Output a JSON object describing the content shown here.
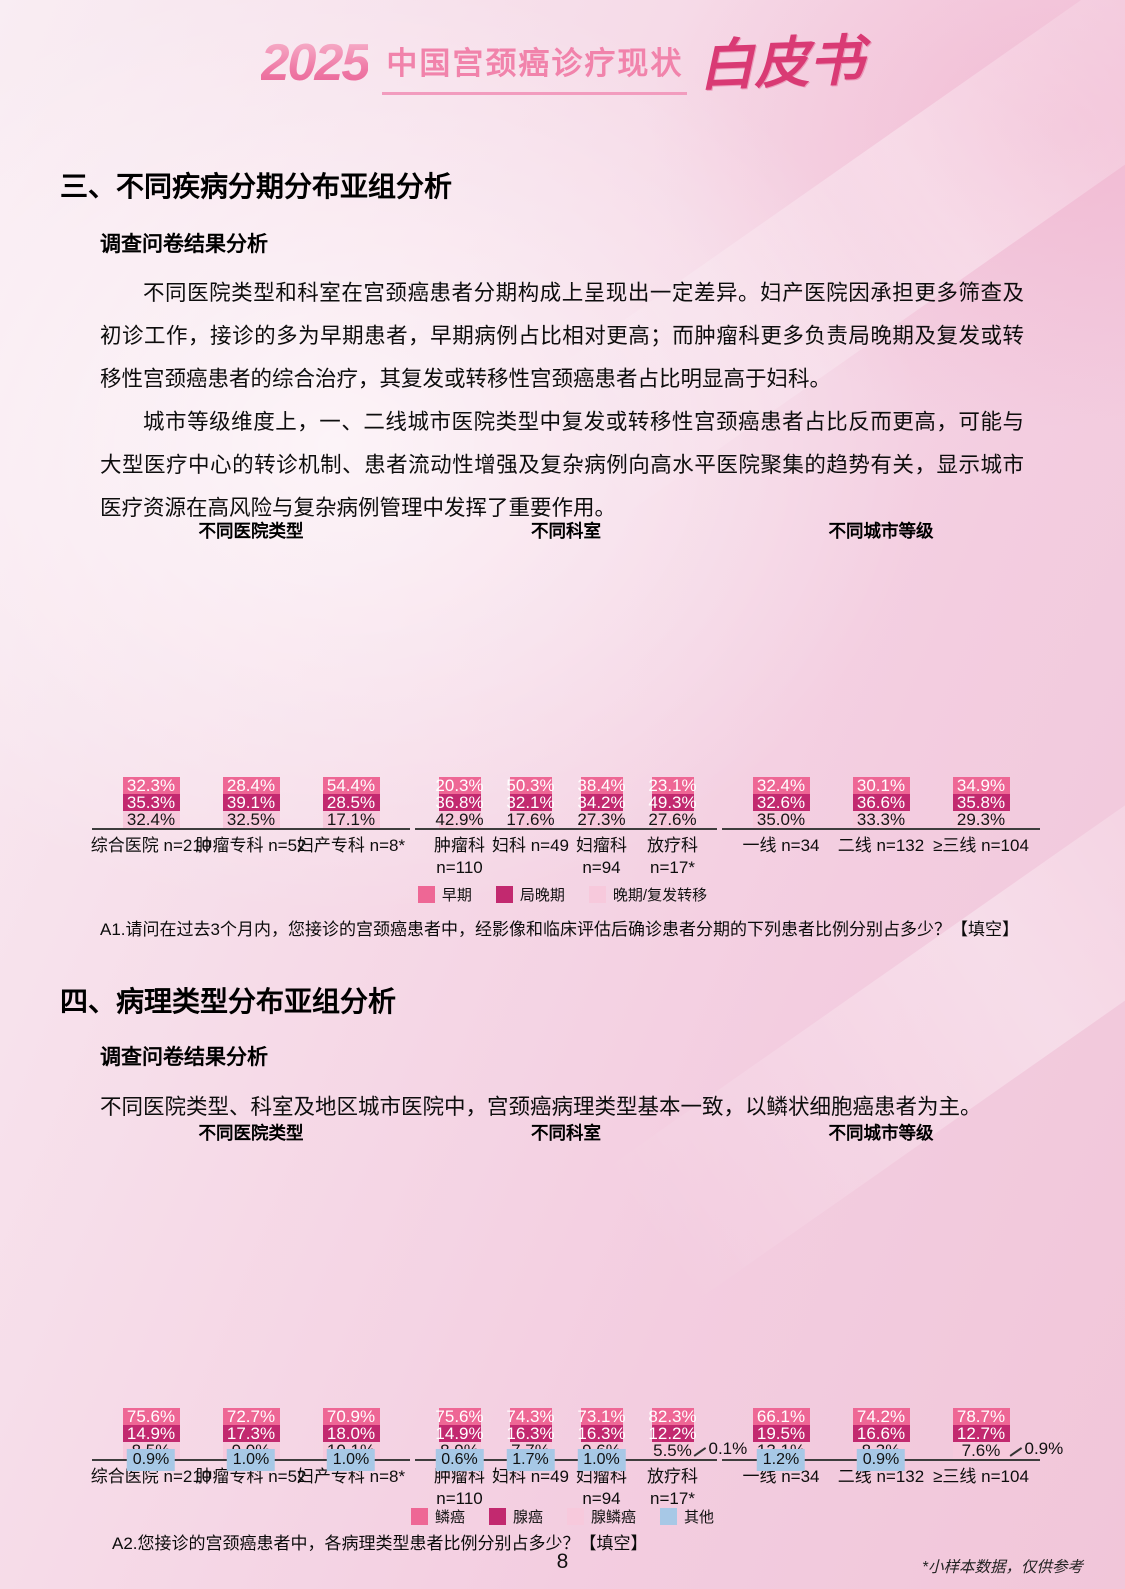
{
  "header": {
    "year": "2025",
    "title": "中国宫颈癌诊疗现状",
    "suffix": "白皮书"
  },
  "section3": {
    "heading": "三、不同疾病分期分布亚组分析",
    "subheading": "调查问卷结果分析",
    "paragraphs": [
      "不同医院类型和科室在宫颈癌患者分期构成上呈现出一定差异。妇产医院因承担更多筛查及初诊工作，接诊的多为早期患者，早期病例占比相对更高；而肿瘤科更多负责局晚期及复发或转移性宫颈癌患者的综合治疗，其复发或转移性宫颈癌患者占比明显高于妇科。",
      "城市等级维度上，一、二线城市医院类型中复发或转移性宫颈癌患者占比反而更高，可能与大型医疗中心的转诊机制、患者流动性增强及复杂病例向高水平医院聚集的趋势有关，显示城市医疗资源在高风险与复杂病例管理中发挥了重要作用。"
    ],
    "question": "A1.请问在过去3个月内，您接诊的宫颈癌患者中，经影像和临床评估后确诊患者分期的下列患者比例分别占多少？【填空】"
  },
  "section4": {
    "heading": "四、病理类型分布亚组分析",
    "subheading": "调查问卷结果分析",
    "paragraphs": [
      "不同医院类型、科室及地区城市医院中，宫颈癌病理类型基本一致，以鳞状细胞癌患者为主。"
    ],
    "question": "A2.您接诊的宫颈癌患者中，各病理类型患者比例分别占多少？【填空】"
  },
  "colors": {
    "pink": "#EE6795",
    "magenta": "#C2296F",
    "light_pink": "#F7C9DC",
    "light_blue": "#A7C8E6",
    "logo_pink": "#F183AB",
    "logo_crimson": "#D93A74",
    "axis": "#3D3D3D"
  },
  "legends": {
    "row1": [
      {
        "label": "早期",
        "color": "#EE6795"
      },
      {
        "label": "局晚期",
        "color": "#C2296F"
      },
      {
        "label": "晚期/复发转移",
        "color": "#F7C9DC"
      }
    ],
    "row2": [
      {
        "label": "鳞癌",
        "color": "#EE6795"
      },
      {
        "label": "腺癌",
        "color": "#C2296F"
      },
      {
        "label": "腺鳞癌",
        "color": "#F7C9DC"
      },
      {
        "label": "其他",
        "color": "#A7C8E6"
      }
    ]
  },
  "chart_data": [
    {
      "type": "bar",
      "subtype": "stacked-100",
      "row": 1,
      "id": "hospital-staging",
      "title": "不同医院类型",
      "categories": [
        "综合医院 n=210",
        "肿瘤专科 n=52",
        "妇产专科 n=8*"
      ],
      "series": [
        {
          "name": "早期",
          "color": "#EE6795",
          "label_style": "inside-white",
          "values": [
            32.3,
            28.4,
            54.4
          ]
        },
        {
          "name": "局晚期",
          "color": "#C2296F",
          "label_style": "inside-white",
          "values": [
            35.3,
            39.1,
            28.5
          ]
        },
        {
          "name": "晚期/复发转移",
          "color": "#F7C9DC",
          "label_style": "inside-dark",
          "values": [
            32.4,
            32.5,
            17.1
          ]
        }
      ]
    },
    {
      "type": "bar",
      "subtype": "stacked-100",
      "row": 1,
      "id": "department-staging",
      "title": "不同科室",
      "categories": [
        "肿瘤科\nn=110",
        "妇科 n=49",
        "妇瘤科\nn=94",
        "放疗科\nn=17*"
      ],
      "series": [
        {
          "name": "早期",
          "color": "#EE6795",
          "label_style": "inside-white",
          "values": [
            20.3,
            50.3,
            38.4,
            23.1
          ]
        },
        {
          "name": "局晚期",
          "color": "#C2296F",
          "label_style": "inside-white",
          "values": [
            36.8,
            32.1,
            34.2,
            49.3
          ]
        },
        {
          "name": "晚期/复发转移",
          "color": "#F7C9DC",
          "label_style": "inside-dark",
          "values": [
            42.9,
            17.6,
            27.3,
            27.6
          ]
        }
      ]
    },
    {
      "type": "bar",
      "subtype": "stacked-100",
      "row": 1,
      "id": "city-staging",
      "title": "不同城市等级",
      "categories": [
        "一线 n=34",
        "二线 n=132",
        "≥三线 n=104"
      ],
      "series": [
        {
          "name": "早期",
          "color": "#EE6795",
          "label_style": "inside-white",
          "values": [
            32.4,
            30.1,
            34.9
          ]
        },
        {
          "name": "局晚期",
          "color": "#C2296F",
          "label_style": "inside-white",
          "values": [
            32.6,
            36.6,
            35.8
          ]
        },
        {
          "name": "晚期/复发转移",
          "color": "#F7C9DC",
          "label_style": "inside-dark",
          "values": [
            35.0,
            33.3,
            29.3
          ]
        }
      ]
    },
    {
      "type": "bar",
      "subtype": "stacked-100",
      "row": 2,
      "id": "hospital-pathology",
      "title": "不同医院类型",
      "categories": [
        "综合医院 n=210",
        "肿瘤专科 n=52",
        "妇产专科 n=8*"
      ],
      "series": [
        {
          "name": "鳞癌",
          "color": "#EE6795",
          "label_style": "inside-white",
          "values": [
            75.6,
            72.7,
            70.9
          ]
        },
        {
          "name": "腺癌",
          "color": "#C2296F",
          "label_style": "inside-white",
          "values": [
            14.9,
            17.3,
            18.0
          ]
        },
        {
          "name": "腺鳞癌",
          "color": "#F7C9DC",
          "label_style": "inside-dark",
          "values": [
            8.5,
            9.0,
            10.1
          ]
        },
        {
          "name": "其他",
          "color": "#A7C8E6",
          "label_style": "badge",
          "values": [
            0.9,
            1.0,
            1.0
          ]
        }
      ]
    },
    {
      "type": "bar",
      "subtype": "stacked-100",
      "row": 2,
      "id": "department-pathology",
      "title": "不同科室",
      "categories": [
        "肿瘤科\nn=110",
        "妇科 n=49",
        "妇瘤科\nn=94",
        "放疗科\nn=17*"
      ],
      "callout_index": 3,
      "series": [
        {
          "name": "鳞癌",
          "color": "#EE6795",
          "label_style": "inside-white",
          "values": [
            75.6,
            74.3,
            73.1,
            82.3
          ]
        },
        {
          "name": "腺癌",
          "color": "#C2296F",
          "label_style": "inside-white",
          "values": [
            14.9,
            16.3,
            16.3,
            12.2
          ]
        },
        {
          "name": "腺鳞癌",
          "color": "#F7C9DC",
          "label_style": "inside-dark",
          "values": [
            8.9,
            7.7,
            9.6,
            5.5
          ]
        },
        {
          "name": "其他",
          "color": "#A7C8E6",
          "label_style": "badge",
          "values": [
            0.6,
            1.7,
            1.0,
            0.1
          ]
        }
      ]
    },
    {
      "type": "bar",
      "subtype": "stacked-100",
      "row": 2,
      "id": "city-pathology",
      "title": "不同城市等级",
      "categories": [
        "一线 n=34",
        "二线 n=132",
        "≥三线 n=104"
      ],
      "callout_index": 2,
      "series": [
        {
          "name": "鳞癌",
          "color": "#EE6795",
          "label_style": "inside-white",
          "values": [
            66.1,
            74.2,
            78.7
          ]
        },
        {
          "name": "腺癌",
          "color": "#C2296F",
          "label_style": "inside-white",
          "values": [
            19.5,
            16.6,
            12.7
          ]
        },
        {
          "name": "腺鳞癌",
          "color": "#F7C9DC",
          "label_style": "inside-dark",
          "values": [
            13.1,
            8.3,
            7.6
          ]
        },
        {
          "name": "其他",
          "color": "#A7C8E6",
          "label_style": "badge",
          "values": [
            1.2,
            0.9,
            0.9
          ]
        }
      ]
    }
  ],
  "page_number": "8",
  "footnote": "*小样本数据，仅供参考"
}
